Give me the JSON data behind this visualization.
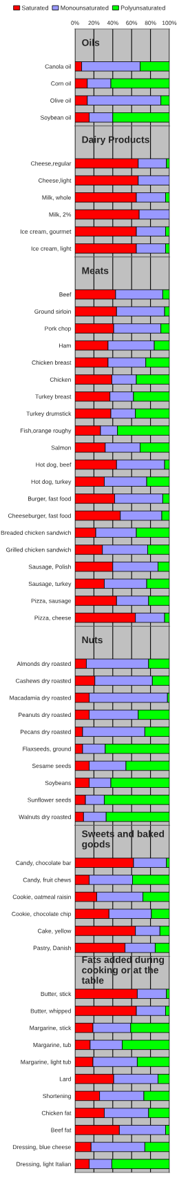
{
  "chart_data": [
    {
      "type": "bar",
      "orientation": "horizontal",
      "stacked": true,
      "title": "Oils",
      "categories": [
        "Canola oil",
        "Corn oil",
        "Olive oil",
        "Soybean oil"
      ],
      "series": [
        {
          "name": "Saturated",
          "color": "#ff0000",
          "values": [
            7,
            13,
            13,
            15
          ]
        },
        {
          "name": "Monounsaturated",
          "color": "#9999ff",
          "values": [
            62,
            25,
            78,
            25
          ]
        },
        {
          "name": "Polyunsaturated",
          "color": "#00ff00",
          "values": [
            31,
            62,
            9,
            60
          ]
        }
      ],
      "xlim": [
        0,
        100
      ],
      "xticks": [
        {
          "value": 0,
          "label": "0%"
        },
        {
          "value": 20,
          "label": "20%"
        },
        {
          "value": 40,
          "label": "40%"
        },
        {
          "value": 60,
          "label": "60%"
        },
        {
          "value": 80,
          "label": "80%"
        },
        {
          "value": 100,
          "label": "100%"
        }
      ],
      "grid": "x",
      "legend": "top"
    },
    {
      "type": "bar",
      "orientation": "horizontal",
      "stacked": true,
      "title": "Dairy Products",
      "categories": [
        "Cheese,regular",
        "Cheese,light",
        "Milk, whole",
        "Milk, 2%",
        "Ice cream, gourmet",
        "Ice cream, light"
      ],
      "series": [
        {
          "color": "#ff0000",
          "values": [
            67,
            67,
            65,
            68,
            65,
            65
          ]
        },
        {
          "color": "#9999ff",
          "values": [
            30,
            33,
            31,
            32,
            31,
            31
          ]
        },
        {
          "color": "#00ff00",
          "values": [
            3,
            0,
            4,
            0,
            4,
            4
          ]
        }
      ],
      "xlim": [
        0,
        100
      ],
      "xticks": [
        0,
        20,
        40,
        60,
        80,
        100
      ],
      "grid": "x",
      "tick_labels": "y"
    },
    {
      "type": "bar",
      "orientation": "horizontal",
      "stacked": true,
      "title": "Meats",
      "categories": [
        "Beef",
        "Ground sirloin",
        "Pork chop",
        "Ham",
        "Chicken breast",
        "Chicken",
        "Turkey breast",
        "Turkey drumstick",
        "Fish,orange roughy",
        "Salmon",
        "Hot dog, beef",
        "Hot dog, turkey",
        "Burger, fast food",
        "Cheeseburger, fast food",
        "Breaded chicken sandwich",
        "Grilled chicken sandwich",
        "Sausage, Polish",
        "Sausage, turkey",
        "Pizza, sausage",
        "Pizza, cheese"
      ],
      "series": [
        {
          "color": "#ff0000",
          "values": [
            43,
            44,
            41,
            35,
            35,
            39,
            37,
            38,
            27,
            32,
            44,
            31,
            42,
            48,
            22,
            29,
            40,
            31,
            44,
            64
          ]
        },
        {
          "color": "#9999ff",
          "values": [
            50,
            51,
            50,
            49,
            40,
            26,
            25,
            26,
            18,
            37,
            51,
            45,
            51,
            44,
            43,
            48,
            48,
            45,
            34,
            31
          ]
        },
        {
          "color": "#00ff00",
          "values": [
            7,
            5,
            9,
            16,
            25,
            35,
            38,
            36,
            55,
            31,
            5,
            24,
            7,
            8,
            35,
            23,
            12,
            24,
            22,
            5
          ]
        }
      ],
      "xlim": [
        0,
        100
      ],
      "xticks": [
        0,
        20,
        40,
        60,
        80,
        100
      ],
      "grid": "x",
      "tick_labels": "y"
    },
    {
      "type": "bar",
      "orientation": "horizontal",
      "stacked": true,
      "title": "Nuts",
      "categories": [
        "Almonds dry roasted",
        "Cashews dry roasted",
        "Macadamia dry roasted",
        "Peanuts dry roasted",
        "Pecans dry roasted",
        "Flaxseeds, ground",
        "Sesame seeds",
        "Soybeans",
        "Sunflower seeds",
        "Walnuts dry roasted"
      ],
      "series": [
        {
          "color": "#ff0000",
          "values": [
            12,
            21,
            15,
            15,
            8,
            8,
            15,
            15,
            11,
            9
          ]
        },
        {
          "color": "#9999ff",
          "values": [
            66,
            61,
            83,
            52,
            66,
            24,
            39,
            23,
            20,
            24
          ]
        },
        {
          "color": "#00ff00",
          "values": [
            22,
            18,
            2,
            33,
            26,
            68,
            46,
            62,
            69,
            67
          ]
        }
      ],
      "xlim": [
        0,
        100
      ],
      "xticks": [
        0,
        20,
        40,
        60,
        80,
        100
      ],
      "grid": "x",
      "tick_labels": "y"
    },
    {
      "type": "bar",
      "orientation": "horizontal",
      "stacked": true,
      "title": "Sweets and baked goods",
      "categories": [
        "Candy, chocolate bar",
        "Candy, fruit chews",
        "Cookie, oatmeal raisin",
        "Cookie, chocolate chip",
        "Cake, yellow",
        "Pastry, Danish"
      ],
      "series": [
        {
          "color": "#ff0000",
          "values": [
            62,
            15,
            23,
            36,
            64,
            53
          ]
        },
        {
          "color": "#9999ff",
          "values": [
            35,
            46,
            49,
            45,
            26,
            32
          ]
        },
        {
          "color": "#00ff00",
          "values": [
            3,
            39,
            28,
            19,
            10,
            15
          ]
        }
      ],
      "xlim": [
        0,
        100
      ],
      "xticks": [
        0,
        20,
        40,
        60,
        80,
        100
      ],
      "grid": "x",
      "tick_labels": "y"
    },
    {
      "type": "bar",
      "orientation": "horizontal",
      "stacked": true,
      "title": "Fats added during cooking or at the table",
      "categories": [
        "Butter, stick",
        "Butter, whipped",
        "Margarine, stick",
        "Margarine, tub",
        "Margarine, light tub",
        "Lard",
        "Shortening",
        "Chicken fat",
        "Beef fat",
        "Dressing, blue cheese",
        "Dressing, light Italian"
      ],
      "series": [
        {
          "color": "#ff0000",
          "values": [
            66,
            65,
            19,
            16,
            19,
            41,
            26,
            31,
            47,
            17,
            15
          ]
        },
        {
          "color": "#9999ff",
          "values": [
            31,
            31,
            40,
            34,
            47,
            47,
            47,
            47,
            49,
            57,
            24
          ]
        },
        {
          "color": "#00ff00",
          "values": [
            3,
            4,
            41,
            50,
            34,
            12,
            27,
            22,
            4,
            26,
            61
          ]
        }
      ],
      "xlim": [
        0,
        100
      ],
      "xticks": [
        0,
        20,
        40,
        60,
        80,
        100
      ],
      "grid": "x",
      "tick_labels": "y"
    }
  ]
}
